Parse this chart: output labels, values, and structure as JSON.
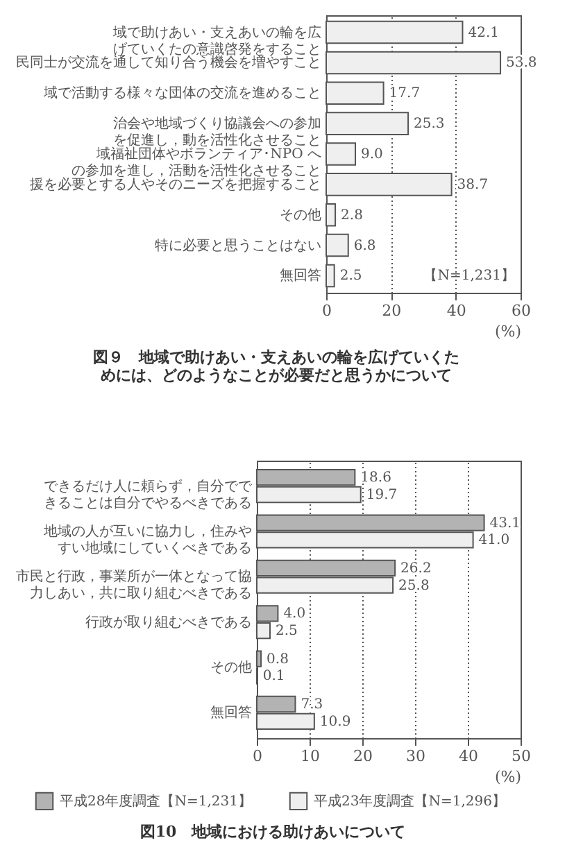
{
  "chart_data": [
    {
      "type": "bar",
      "orientation": "horizontal",
      "title": "図９　地域で助けあい・支えあいの輪を広げていくためには、どのようなことが必要だと思うかについて",
      "xlabel": "(%)",
      "categories": [
        "域で助けあい・支えあいの輪を広げていくたの意識啓発をすること",
        "民同士が交流を通して知り合う機会を増やすこと",
        "域で活動する様々な団体の交流を進めること",
        "治会や地域づくり協議会への参加を促進し，動を活性化させること",
        "域福祉団体やボランティア･NPO への参加を進し，活動を活性化させること",
        "援を必要とする人やそのニーズを把握すること",
        "その他",
        "特に必要と思うことはない",
        "無回答"
      ],
      "values": [
        42.1,
        53.8,
        17.7,
        25.3,
        9.0,
        38.7,
        2.8,
        6.8,
        2.5
      ],
      "value_labels": [
        "42.1",
        "53.8",
        "17.7",
        "25.3",
        "9.0",
        "38.7",
        "2.8",
        "6.8",
        "2.5"
      ],
      "color": "#efefef",
      "xlim": [
        0,
        60
      ],
      "xticks": [
        0,
        20,
        40,
        60
      ],
      "grid": "x",
      "annotations": [
        "【N=1,231】"
      ]
    },
    {
      "type": "bar",
      "orientation": "horizontal",
      "title": "図10　地域における助けあいについて",
      "xlabel": "(%)",
      "categories": [
        "できるだけ人に頼らず，自分でできることは自分でやるべきである",
        "地域の人が互いに協力し，住みやすい地域にしていくべきである",
        "市民と行政，事業所が一体となって協力しあい，共に取り組むべきである",
        "行政が取り組むべきである",
        "その他",
        "無回答"
      ],
      "series": [
        {
          "name": "平成28年度調査【N=1,231】",
          "color": "#b3b3b3",
          "values": [
            18.6,
            43.1,
            26.2,
            4.0,
            0.8,
            7.3
          ],
          "value_labels": [
            "18.6",
            "43.1",
            "26.2",
            "4.0",
            "0.8",
            "7.3"
          ]
        },
        {
          "name": "平成23年度調査【N=1,296】",
          "color": "#efefef",
          "values": [
            19.7,
            41.0,
            25.8,
            2.5,
            0.1,
            10.9
          ],
          "value_labels": [
            "19.7",
            "41.0",
            "25.8",
            "2.5",
            "0.1",
            "10.9"
          ]
        }
      ],
      "xlim": [
        0,
        50
      ],
      "xticks": [
        0,
        10,
        20,
        30,
        40,
        50
      ],
      "grid": "x",
      "legend": "bottom"
    }
  ]
}
